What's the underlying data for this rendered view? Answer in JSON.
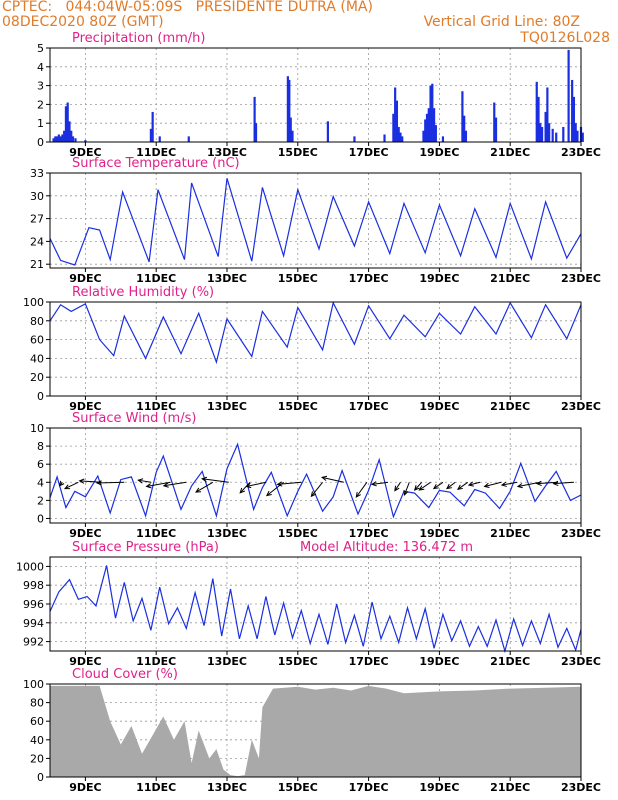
{
  "header": {
    "line1": "CPTEC:   044:04W-05:09S   PRESIDENTE DUTRA (MA)",
    "line2_left": "08DEC2020 80Z (GMT)",
    "line2_right": "Vertical Grid Line: 80Z",
    "line3_right": "TQ0126L028",
    "color": "#e07b2a"
  },
  "x_ticks": [
    "9DEC",
    "11DEC",
    "13DEC",
    "15DEC",
    "17DEC",
    "19DEC",
    "21DEC",
    "23DEC"
  ],
  "chart_data": [
    {
      "type": "bar",
      "title": "Precipitation (mm/h)",
      "ylim": [
        0,
        5
      ],
      "yticks": [
        "0",
        "1",
        "2",
        "3",
        "4",
        "5"
      ],
      "color": "#1a2fe0",
      "x": [
        8.1,
        8.15,
        8.2,
        8.25,
        8.3,
        8.35,
        8.4,
        8.45,
        8.5,
        8.55,
        8.6,
        8.65,
        8.72,
        9.0,
        10.85,
        10.9,
        11.1,
        11.92,
        13.78,
        13.82,
        14.72,
        14.76,
        14.8,
        14.85,
        15.85,
        16.6,
        17.45,
        17.7,
        17.75,
        17.8,
        17.85,
        17.9,
        17.95,
        18.55,
        18.6,
        18.65,
        18.7,
        18.75,
        18.8,
        18.85,
        18.9,
        19.1,
        19.65,
        19.7,
        19.75,
        20.55,
        20.6,
        21.75,
        21.8,
        21.85,
        21.9,
        22.0,
        22.05,
        22.1,
        22.2,
        22.3,
        22.5,
        22.65,
        22.75,
        22.8,
        22.85,
        22.9,
        23.0,
        23.05
      ],
      "values": [
        0.2,
        0.3,
        0.3,
        0.4,
        0.3,
        0.4,
        0.6,
        1.9,
        2.1,
        1.1,
        0.6,
        0.3,
        0.2,
        0.1,
        0.7,
        1.6,
        0.3,
        0.3,
        2.4,
        1.0,
        3.5,
        3.3,
        1.3,
        0.6,
        1.1,
        0.3,
        0.4,
        1.5,
        2.9,
        2.2,
        0.8,
        0.5,
        0.3,
        0.6,
        1.2,
        1.5,
        1.8,
        3.0,
        3.1,
        1.8,
        0.9,
        0.3,
        2.7,
        1.4,
        0.6,
        2.1,
        1.3,
        3.2,
        2.4,
        1.0,
        0.8,
        1.6,
        2.9,
        1.0,
        0.7,
        0.5,
        0.8,
        4.9,
        3.3,
        2.4,
        1.0,
        0.6,
        0.8,
        0.5
      ]
    },
    {
      "type": "line",
      "title": "Surface Temperature (nC)",
      "ylim": [
        20.5,
        33
      ],
      "yticks": [
        "21",
        "24",
        "27",
        "30",
        "33"
      ],
      "color": "#1a2fe0",
      "x": [
        8.0,
        8.3,
        8.7,
        9.1,
        9.4,
        9.7,
        10.05,
        10.8,
        11.05,
        11.8,
        12.0,
        12.75,
        13.0,
        13.7,
        14.0,
        14.6,
        15.0,
        15.6,
        16.0,
        16.6,
        17.0,
        17.6,
        18.0,
        18.6,
        19.0,
        19.6,
        20.0,
        20.6,
        21.0,
        21.6,
        22.0,
        22.6,
        23.0
      ],
      "values": [
        24.4,
        21.5,
        20.9,
        25.8,
        25.5,
        21.6,
        30.5,
        21.3,
        30.8,
        21.6,
        31.7,
        22.0,
        32.3,
        21.4,
        31.1,
        22.1,
        30.8,
        23.0,
        29.9,
        23.4,
        29.2,
        22.4,
        29.0,
        22.5,
        28.8,
        22.1,
        28.3,
        21.9,
        29.0,
        21.7,
        29.2,
        21.8,
        25.0
      ]
    },
    {
      "type": "line",
      "title": "Relative Humidity (%)",
      "ylim": [
        0,
        100
      ],
      "yticks": [
        "0",
        "20",
        "40",
        "60",
        "80",
        "100"
      ],
      "color": "#1a2fe0",
      "x": [
        8.0,
        8.3,
        8.6,
        9.0,
        9.4,
        9.8,
        10.1,
        10.7,
        11.2,
        11.7,
        12.2,
        12.7,
        13.0,
        13.7,
        14.0,
        14.7,
        15.0,
        15.7,
        16.0,
        16.6,
        17.0,
        17.6,
        18.0,
        18.6,
        19.0,
        19.6,
        20.0,
        20.6,
        21.0,
        21.6,
        22.0,
        22.6,
        23.0
      ],
      "values": [
        80,
        97,
        90,
        98,
        60,
        43,
        85,
        40,
        84,
        45,
        88,
        36,
        82,
        42,
        90,
        52,
        94,
        49,
        99,
        55,
        96,
        61,
        86,
        63,
        88,
        66,
        95,
        66,
        99,
        62,
        97,
        61,
        97
      ]
    },
    {
      "type": "line",
      "title": "Surface Wind (m/s)",
      "ylim": [
        -0.5,
        10
      ],
      "yticks": [
        "0",
        "2",
        "4",
        "6",
        "8",
        "10"
      ],
      "color": "#1a2fe0",
      "x": [
        8.0,
        8.2,
        8.45,
        8.7,
        9.0,
        9.35,
        9.7,
        10.0,
        10.3,
        10.7,
        11.0,
        11.2,
        11.7,
        12.0,
        12.3,
        12.7,
        13.0,
        13.3,
        13.75,
        14.0,
        14.25,
        14.7,
        15.0,
        15.25,
        15.7,
        16.0,
        16.25,
        16.7,
        17.0,
        17.3,
        17.7,
        18.0,
        18.3,
        18.7,
        19.0,
        19.3,
        19.7,
        20.0,
        20.3,
        20.7,
        21.0,
        21.3,
        21.7,
        22.0,
        22.3,
        22.7,
        23.0
      ],
      "values": [
        2.3,
        4.6,
        1.2,
        3.0,
        2.4,
        4.7,
        0.6,
        4.3,
        4.6,
        0.3,
        5.1,
        6.9,
        1.0,
        3.6,
        5.2,
        0.3,
        5.5,
        8.2,
        1.0,
        3.4,
        5.1,
        0.3,
        3.0,
        4.9,
        0.8,
        2.4,
        5.3,
        0.5,
        3.1,
        6.5,
        0.2,
        3.0,
        2.8,
        1.2,
        3.1,
        2.9,
        1.4,
        3.2,
        2.8,
        1.1,
        3.0,
        6.1,
        1.9,
        3.6,
        5.2,
        2.0,
        2.6
      ],
      "vectors": {
        "x": [
          8.35,
          8.8,
          9.45,
          10.1,
          10.85,
          11.4,
          11.85,
          12.6,
          13.05,
          13.65,
          14.1,
          14.6,
          15.1,
          15.7,
          16.3,
          16.95,
          17.55,
          17.9,
          18.15,
          18.5,
          18.75,
          19.1,
          19.45,
          19.8,
          20.15,
          20.75,
          21.2,
          21.85,
          22.35,
          22.8
        ],
        "u": [
          0.4,
          1.9,
          3.1,
          3.9,
          1.8,
          3.4,
          3.2,
          2.4,
          3.8,
          1.4,
          2.8,
          2.4,
          3.4,
          1.6,
          3.1,
          1.5,
          2.3,
          0.8,
          0.7,
          1.0,
          1.6,
          1.3,
          1.2,
          1.4,
          1.6,
          2.4,
          2.2,
          3.2,
          3.0,
          2.9
        ],
        "v": [
          0.5,
          0.9,
          -0.2,
          0.1,
          -0.3,
          0.6,
          0.5,
          1.4,
          -0.5,
          1.5,
          0.6,
          1.9,
          0.3,
          2.0,
          -0.7,
          2.1,
          0.3,
          1.2,
          1.8,
          1.1,
          1.1,
          0.9,
          0.9,
          1.0,
          0.4,
          0.6,
          0.4,
          0.6,
          0.2,
          0.2
        ]
      }
    },
    {
      "type": "line",
      "title": "Surface Pressure (hPa)",
      "subtitle": "Model Altitude:  136.472  m",
      "ylim": [
        991,
        1001
      ],
      "yticks": [
        "992",
        "994",
        "996",
        "998",
        "1000"
      ],
      "color": "#1a2fe0",
      "x": [
        8.0,
        8.25,
        8.55,
        8.8,
        9.05,
        9.3,
        9.6,
        9.85,
        10.1,
        10.35,
        10.6,
        10.85,
        11.1,
        11.35,
        11.6,
        11.85,
        12.1,
        12.35,
        12.6,
        12.85,
        13.1,
        13.35,
        13.6,
        13.85,
        14.1,
        14.35,
        14.6,
        14.85,
        15.1,
        15.35,
        15.6,
        15.85,
        16.1,
        16.35,
        16.6,
        16.85,
        17.1,
        17.35,
        17.6,
        17.85,
        18.1,
        18.35,
        18.6,
        18.85,
        19.1,
        19.35,
        19.6,
        19.85,
        20.1,
        20.35,
        20.6,
        20.85,
        21.1,
        21.35,
        21.6,
        21.85,
        22.1,
        22.35,
        22.6,
        22.85,
        23.0
      ],
      "values": [
        995.2,
        997.3,
        998.6,
        996.5,
        996.8,
        995.8,
        1000.1,
        994.5,
        998.3,
        994.2,
        996.6,
        993.2,
        997.8,
        993.9,
        995.6,
        993.4,
        997.2,
        993.7,
        998.7,
        992.6,
        997.6,
        992.3,
        995.8,
        992.3,
        996.8,
        992.7,
        996.1,
        992.4,
        995.3,
        991.8,
        994.9,
        991.7,
        996.0,
        991.9,
        994.8,
        991.5,
        996.2,
        992.3,
        994.7,
        991.9,
        995.6,
        992.3,
        995.5,
        991.3,
        994.9,
        992.1,
        994.2,
        991.5,
        993.6,
        991.5,
        994.3,
        991.0,
        994.4,
        991.6,
        994.2,
        991.8,
        994.9,
        991.4,
        993.4,
        991.1,
        993.3
      ]
    },
    {
      "type": "area",
      "title": "Cloud Cover (%)",
      "ylim": [
        0,
        100
      ],
      "yticks": [
        "0",
        "20",
        "40",
        "60",
        "80",
        "100"
      ],
      "color": "#a9a9a9",
      "x": [
        8.0,
        9.4,
        9.7,
        10.0,
        10.3,
        10.6,
        10.9,
        11.2,
        11.5,
        11.8,
        12.0,
        12.2,
        12.5,
        12.7,
        12.9,
        13.1,
        13.3,
        13.5,
        13.7,
        13.9,
        14.0,
        14.3,
        15.0,
        15.5,
        16.0,
        16.5,
        17.0,
        17.5,
        18.0,
        19.0,
        20.0,
        21.0,
        22.0,
        23.0
      ],
      "values": [
        98,
        98,
        60,
        35,
        55,
        25,
        45,
        65,
        40,
        60,
        15,
        50,
        20,
        30,
        8,
        2,
        1,
        2,
        40,
        20,
        75,
        95,
        97,
        94,
        96,
        93,
        98,
        95,
        90,
        92,
        93,
        95,
        96,
        97
      ]
    }
  ]
}
